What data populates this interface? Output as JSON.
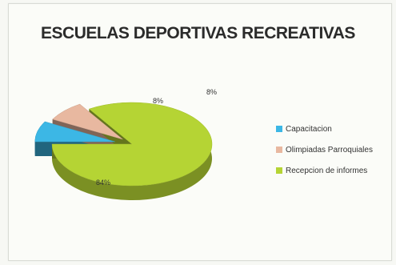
{
  "chart_data": {
    "type": "pie",
    "title": "ESCUELAS DEPORTIVAS RECREATIVAS",
    "categories": [
      "Capacitacion",
      "Olimpiadas Parroquiales",
      "Recepcion de informes"
    ],
    "values": [
      8,
      8,
      84
    ],
    "data_labels": [
      "8%",
      "8%",
      "84%"
    ],
    "colors": [
      "#3cb7e5",
      "#e8b8a0",
      "#b5d434"
    ],
    "legend": "right",
    "style": "3d-exploded"
  }
}
